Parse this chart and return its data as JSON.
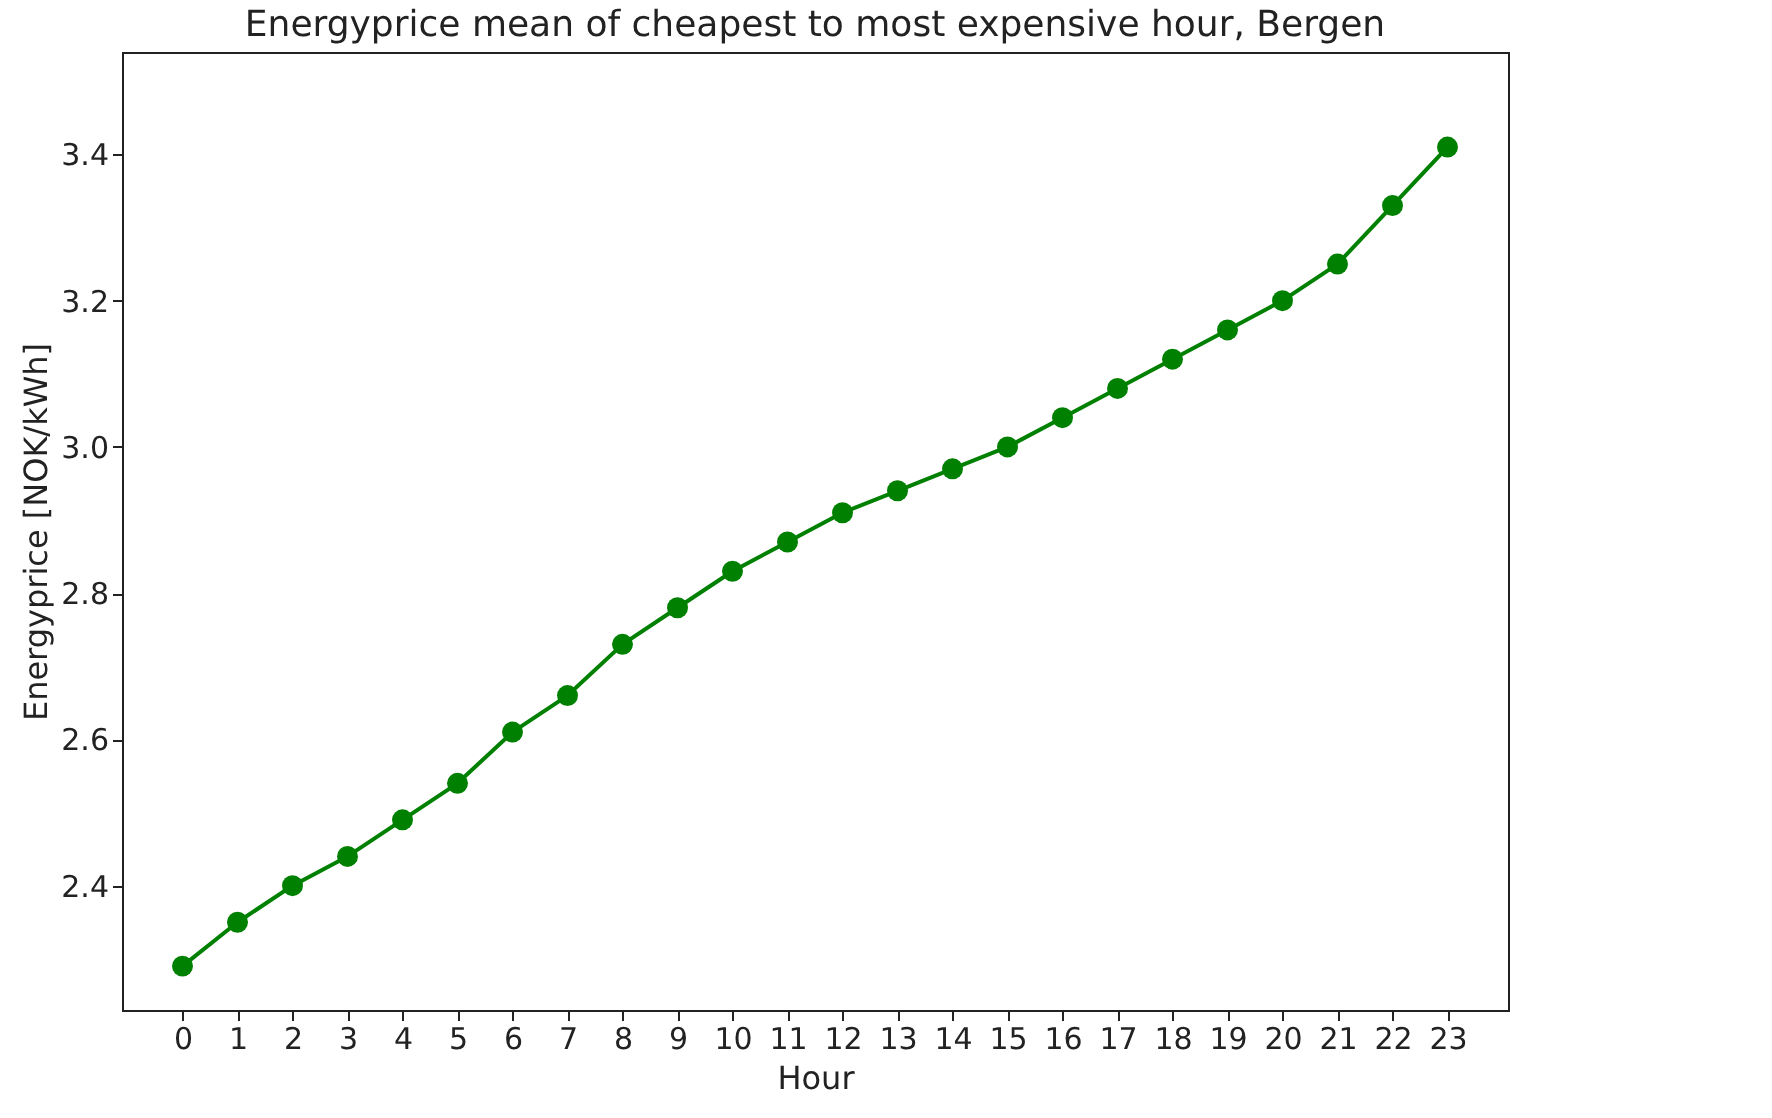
{
  "chart_data": {
    "type": "line",
    "title": "Energyprice mean of cheapest to most expensive hour, Bergen",
    "xlabel": "Hour",
    "ylabel": "Energyprice [NOK/kWh]",
    "x": [
      0,
      1,
      2,
      3,
      4,
      5,
      6,
      7,
      8,
      9,
      10,
      11,
      12,
      13,
      14,
      15,
      16,
      17,
      18,
      19,
      20,
      21,
      22,
      23
    ],
    "series": [
      {
        "color": "#008000",
        "values": [
          2.29,
          2.35,
          2.4,
          2.44,
          2.49,
          2.54,
          2.61,
          2.66,
          2.73,
          2.78,
          2.83,
          2.87,
          2.91,
          2.94,
          2.97,
          3.0,
          3.04,
          3.08,
          3.12,
          3.16,
          3.2,
          3.25,
          3.33,
          3.41
        ]
      }
    ],
    "xlim": [
      -1.1,
      24.1
    ],
    "xticks": [
      0,
      1,
      2,
      3,
      4,
      5,
      6,
      7,
      8,
      9,
      10,
      11,
      12,
      13,
      14,
      15,
      16,
      17,
      18,
      19,
      20,
      21,
      22,
      23
    ],
    "ylim": [
      2.23,
      3.54
    ],
    "yticks": [
      {
        "value": 2.4,
        "label": "2.4"
      },
      {
        "value": 2.6,
        "label": "2.6"
      },
      {
        "value": 2.8,
        "label": "2.8"
      },
      {
        "value": 3.0,
        "label": "3.0"
      },
      {
        "value": 3.2,
        "label": "3.2"
      },
      {
        "value": 3.4,
        "label": "3.4"
      }
    ],
    "marker": "circle",
    "line_style": "solid",
    "grid": false
  }
}
